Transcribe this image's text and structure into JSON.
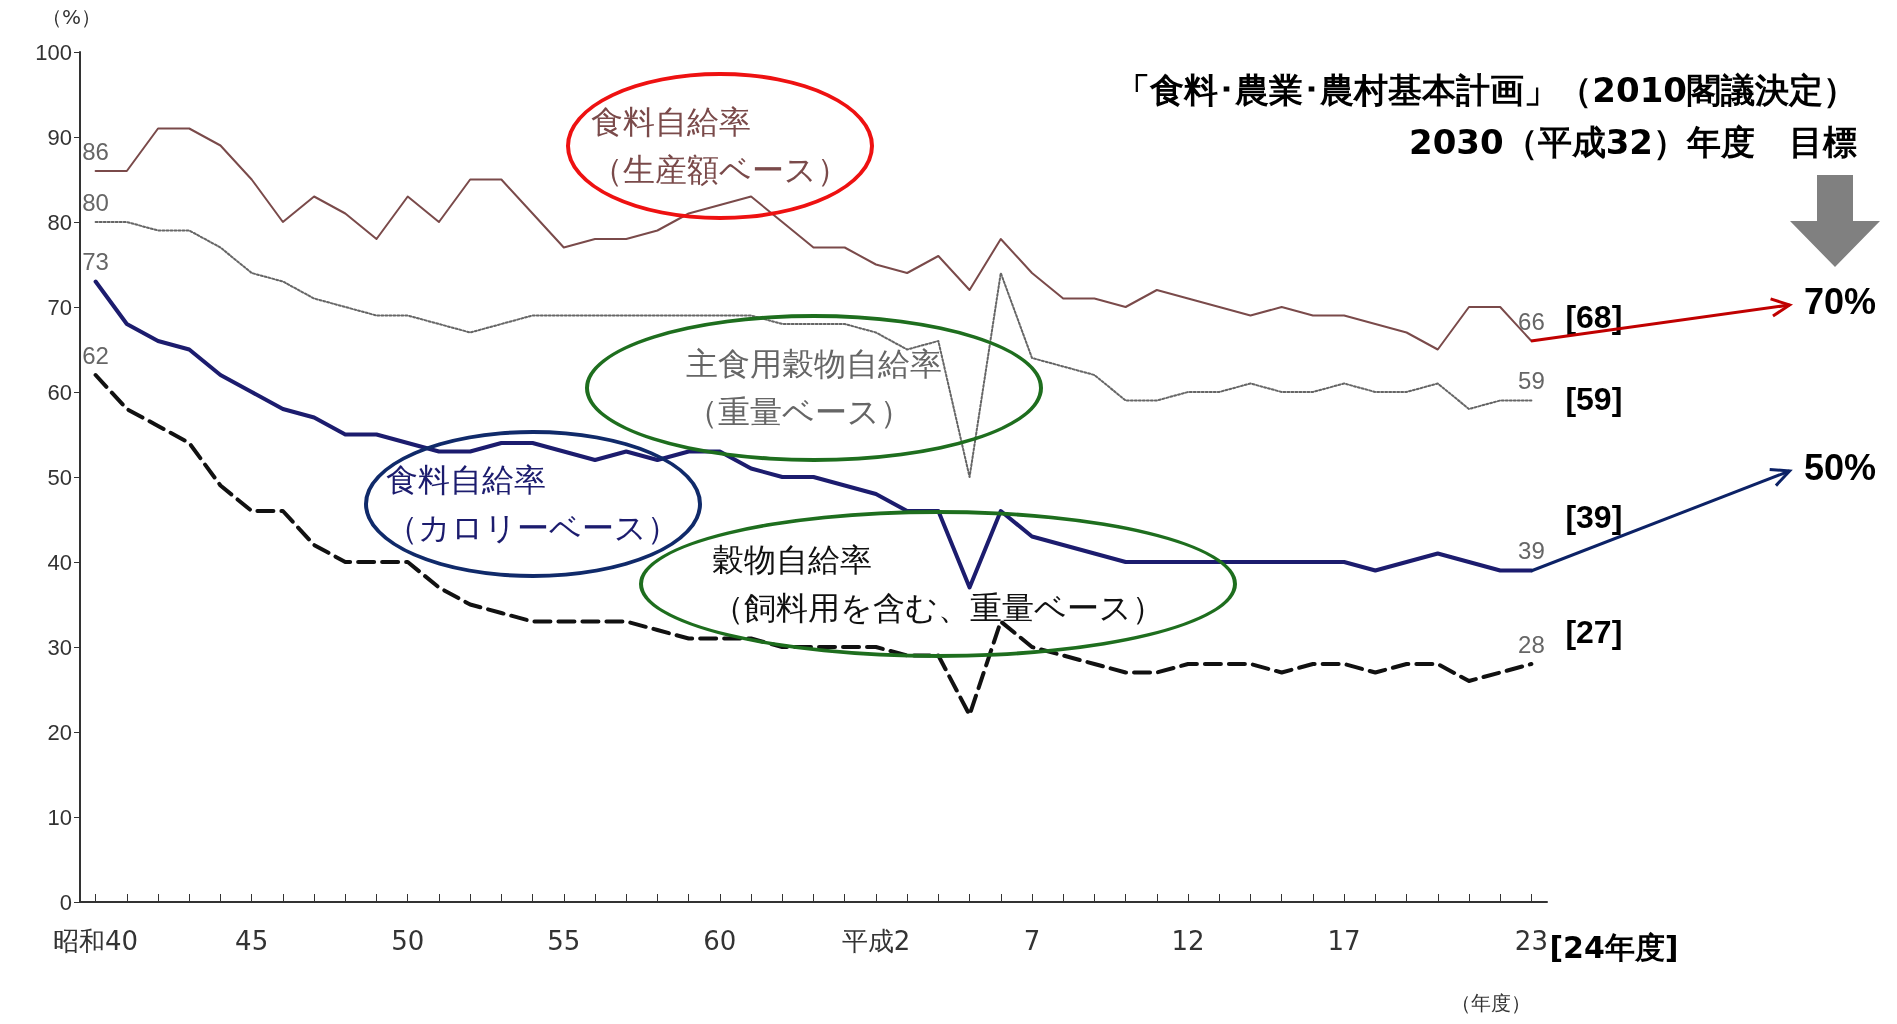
{
  "chart_data": {
    "type": "line",
    "title": "「食料･農業･農村基本計画」（2010閣議決定）",
    "subtitle": "2030（平成32）年度　目標",
    "ylabel": "（%）",
    "xlabel": "（年度）",
    "categories": [
      "昭和40",
      null,
      null,
      null,
      null,
      "45",
      null,
      null,
      null,
      null,
      "50",
      null,
      null,
      null,
      null,
      "55",
      null,
      null,
      null,
      null,
      "60",
      null,
      null,
      null,
      null,
      "平成2",
      null,
      null,
      null,
      null,
      "7",
      null,
      null,
      null,
      null,
      "12",
      null,
      null,
      null,
      null,
      "17",
      null,
      null,
      null,
      null,
      null,
      "23"
    ],
    "ylim": [
      0,
      100
    ],
    "yticks": [
      0,
      10,
      20,
      30,
      40,
      50,
      60,
      70,
      80,
      90,
      100
    ],
    "grid": false,
    "legend": false,
    "marker": "none",
    "series": [
      {
        "name": "食料自給率（生産額ベース）",
        "color": "#7a4a4a",
        "line_style": "solid",
        "values": [
          86,
          86,
          91,
          91,
          89,
          85,
          80,
          83,
          81,
          78,
          83,
          80,
          85,
          85,
          81,
          77,
          78,
          78,
          79,
          81,
          82,
          83,
          80,
          77,
          77,
          75,
          74,
          76,
          72,
          78,
          74,
          71,
          71,
          70,
          72,
          71,
          70,
          69,
          70,
          69,
          69,
          68,
          67,
          65,
          70,
          70,
          66
        ],
        "value_labels": [
          "86",
          null,
          null,
          null,
          null,
          null,
          null,
          null,
          null,
          null,
          null,
          null,
          null,
          null,
          null,
          null,
          null,
          null,
          null,
          null,
          null,
          null,
          null,
          null,
          null,
          null,
          null,
          null,
          null,
          null,
          null,
          null,
          null,
          null,
          null,
          null,
          null,
          null,
          null,
          null,
          null,
          null,
          null,
          null,
          null,
          null,
          "66"
        ]
      },
      {
        "name": "主食用穀物自給率（重量ベース）",
        "color": "#666666",
        "line_style": "dotted",
        "values": [
          80,
          80,
          79,
          79,
          77,
          74,
          73,
          71,
          70,
          69,
          69,
          68,
          67,
          68,
          69,
          69,
          69,
          69,
          69,
          69,
          69,
          69,
          68,
          68,
          68,
          67,
          65,
          66,
          50,
          74,
          64,
          63,
          62,
          59,
          59,
          60,
          60,
          61,
          60,
          60,
          61,
          60,
          60,
          61,
          58,
          59,
          59
        ],
        "value_labels": [
          "80",
          null,
          null,
          null,
          null,
          null,
          null,
          null,
          null,
          null,
          null,
          null,
          null,
          null,
          null,
          null,
          null,
          null,
          null,
          null,
          null,
          null,
          null,
          null,
          null,
          null,
          null,
          null,
          null,
          null,
          null,
          null,
          null,
          null,
          null,
          null,
          null,
          null,
          null,
          null,
          null,
          null,
          null,
          null,
          null,
          null,
          "59"
        ]
      },
      {
        "name": "食料自給率（カロリーベース）",
        "color": "#1c1c6e",
        "line_style": "solid",
        "values": [
          73,
          68,
          66,
          65,
          62,
          60,
          58,
          57,
          55,
          55,
          54,
          53,
          53,
          54,
          54,
          53,
          52,
          53,
          52,
          53,
          53,
          51,
          50,
          50,
          49,
          48,
          46,
          46,
          37,
          46,
          43,
          42,
          41,
          40,
          40,
          40,
          40,
          40,
          40,
          40,
          40,
          39,
          40,
          41,
          40,
          39,
          39
        ],
        "value_labels": [
          "73",
          null,
          null,
          null,
          null,
          null,
          null,
          null,
          null,
          null,
          null,
          null,
          null,
          null,
          null,
          null,
          null,
          null,
          null,
          null,
          null,
          null,
          null,
          null,
          null,
          null,
          null,
          null,
          null,
          null,
          null,
          null,
          null,
          null,
          null,
          null,
          null,
          null,
          null,
          null,
          null,
          null,
          null,
          null,
          null,
          null,
          "39"
        ]
      },
      {
        "name": "穀物自給率（飼料用を含む、重量ベース）",
        "color": "#111111",
        "line_style": "dashed",
        "values": [
          62,
          58,
          56,
          54,
          49,
          46,
          46,
          42,
          40,
          40,
          40,
          37,
          35,
          34,
          33,
          33,
          33,
          33,
          32,
          31,
          31,
          31,
          30,
          30,
          30,
          30,
          29,
          29,
          22,
          33,
          30,
          29,
          28,
          27,
          27,
          28,
          28,
          28,
          27,
          28,
          28,
          27,
          28,
          28,
          26,
          27,
          28
        ],
        "value_labels": [
          "62",
          null,
          null,
          null,
          null,
          null,
          null,
          null,
          null,
          null,
          null,
          null,
          null,
          null,
          null,
          null,
          null,
          null,
          null,
          null,
          null,
          null,
          null,
          null,
          null,
          null,
          null,
          null,
          null,
          null,
          null,
          null,
          null,
          null,
          null,
          null,
          null,
          null,
          null,
          null,
          null,
          null,
          null,
          null,
          null,
          null,
          "28"
        ]
      }
    ],
    "annotations": [
      "[68]",
      "[59]",
      "[39]",
      "[27]",
      {
        "text": "70%",
        "x": "23",
        "y": 66
      },
      {
        "text": "50%",
        "x": "23",
        "y": 39
      },
      "[24年度]"
    ]
  }
}
